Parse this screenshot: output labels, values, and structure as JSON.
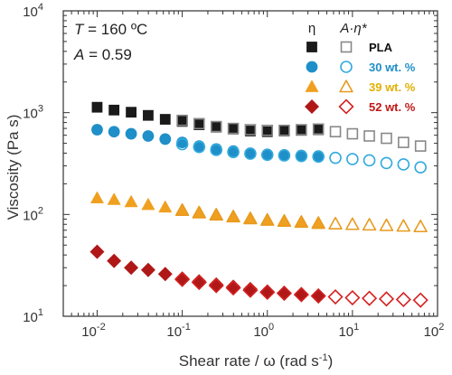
{
  "chart_data": {
    "type": "scatter",
    "title": "",
    "annotations": {
      "line1": {
        "var": "T",
        "text": " = 160 ºC"
      },
      "line2": {
        "var": "A",
        "text": " = 0.59"
      }
    },
    "xlabel": "Shear rate / ω (rad s",
    "xlabel_sup": "-1",
    "xlabel_end": ")",
    "ylabel": "Viscosity (Pa s)",
    "x_scale": "log",
    "y_scale": "log",
    "xlim": [
      0.004,
      100
    ],
    "ylim": [
      10,
      10000
    ],
    "x_ticks": [
      {
        "value": 0.01,
        "base": "10",
        "exp": "-2"
      },
      {
        "value": 0.1,
        "base": "10",
        "exp": "-1"
      },
      {
        "value": 1,
        "base": "10",
        "exp": "0"
      },
      {
        "value": 10,
        "base": "10",
        "exp": "1"
      },
      {
        "value": 100,
        "base": "10",
        "exp": "2"
      }
    ],
    "y_ticks": [
      {
        "value": 10,
        "base": "10",
        "exp": "1"
      },
      {
        "value": 100,
        "base": "10",
        "exp": "2"
      },
      {
        "value": 1000,
        "base": "10",
        "exp": "3"
      },
      {
        "value": 10000,
        "base": "10",
        "exp": "4"
      }
    ],
    "legend": {
      "position": "top-right",
      "header_eta": "η",
      "header_aeta": "A·η*"
    },
    "series": [
      {
        "name": "PLA",
        "marker": "square",
        "color": "#1a1a1a",
        "hollow_color": "#888888",
        "eta_x": [
          0.01,
          0.0158,
          0.0251,
          0.0398,
          0.0631
        ],
        "eta_y": [
          1130,
          1060,
          1010,
          940,
          860
        ],
        "both_x": [
          0.1,
          0.158,
          0.251,
          0.398,
          0.631,
          1,
          1.58,
          2.51,
          3.98
        ],
        "both_y_eta": [
          820,
          760,
          720,
          690,
          660,
          650,
          660,
          670,
          680
        ],
        "both_y_aeta": [
          840,
          780,
          730,
          700,
          680,
          670,
          670,
          680,
          690
        ],
        "aeta_x": [
          6.31,
          10,
          15.8,
          25.1,
          39.8,
          63.1
        ],
        "aeta_y": [
          650,
          620,
          590,
          560,
          510,
          470
        ]
      },
      {
        "name": "30 wt. %",
        "marker": "circle",
        "color": "#1e8fc8",
        "hollow_color": "#33aadd",
        "eta_x": [
          0.01,
          0.0158,
          0.0251,
          0.0398,
          0.0631
        ],
        "eta_y": [
          680,
          650,
          620,
          590,
          550
        ],
        "both_x": [
          0.1,
          0.158,
          0.251,
          0.398,
          0.631,
          1,
          1.58,
          2.51,
          3.98
        ],
        "both_y_eta": [
          510,
          470,
          440,
          420,
          400,
          390,
          385,
          380,
          375
        ],
        "both_y_aeta": [
          490,
          460,
          430,
          410,
          395,
          385,
          380,
          375,
          370
        ],
        "aeta_x": [
          6.31,
          10,
          15.8,
          25.1,
          39.8,
          63.1
        ],
        "aeta_y": [
          360,
          350,
          340,
          320,
          310,
          290
        ]
      },
      {
        "name": "39 wt. %",
        "marker": "triangle",
        "color": "#f0a020",
        "hollow_color": "#e89a1e",
        "eta_x": [
          0.01,
          0.0158,
          0.0251,
          0.0398,
          0.0631
        ],
        "eta_y": [
          145,
          140,
          133,
          125,
          118
        ],
        "both_x": [
          0.1,
          0.158,
          0.251,
          0.398,
          0.631,
          1,
          1.58,
          2.51,
          3.98
        ],
        "both_y_eta": [
          111,
          105,
          100,
          96,
          92,
          89,
          87,
          85,
          83
        ],
        "both_y_aeta": [
          110,
          104,
          99,
          95,
          91,
          88,
          86,
          84,
          82
        ],
        "aeta_x": [
          6.31,
          10,
          15.8,
          25.1,
          39.8,
          63.1
        ],
        "aeta_y": [
          81,
          80,
          79,
          78,
          77,
          76
        ]
      },
      {
        "name": "52 wt. %",
        "marker": "diamond",
        "color": "#b01818",
        "hollow_color": "#d42020",
        "eta_x": [
          0.01,
          0.0158,
          0.0251,
          0.0398,
          0.0631
        ],
        "eta_y": [
          43,
          35,
          30,
          28.5,
          26
        ],
        "both_x": [
          0.1,
          0.158,
          0.251,
          0.398,
          0.631,
          1,
          1.58,
          2.51,
          3.98
        ],
        "both_y_eta": [
          23.5,
          22,
          20.5,
          19.5,
          18.5,
          17.5,
          17,
          16.5,
          16
        ],
        "both_y_aeta": [
          23,
          21.5,
          20,
          19,
          18,
          17.2,
          16.8,
          16.3,
          15.8
        ],
        "aeta_x": [
          6.31,
          10,
          15.8,
          25.1,
          39.8,
          63.1
        ],
        "aeta_y": [
          15.5,
          15.2,
          15,
          14.8,
          14.6,
          14.4
        ]
      }
    ]
  }
}
